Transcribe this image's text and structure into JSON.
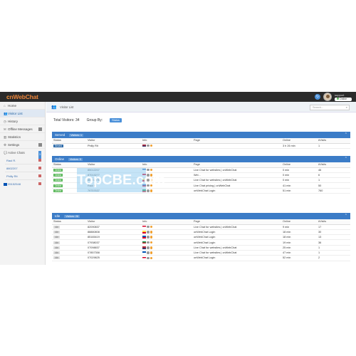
{
  "app": {
    "logo_prefix": "c",
    "logo_main": "nWebChat"
  },
  "topbar": {
    "user_name": "support",
    "status": "Online"
  },
  "sidebar": {
    "items": [
      {
        "icon": "home-icon",
        "glyph": "⌂",
        "label": "Home",
        "active": false
      },
      {
        "icon": "visitors-icon",
        "glyph": "👥",
        "label": "Visitor List",
        "active": true
      },
      {
        "icon": "clock-icon",
        "glyph": "◷",
        "label": "History",
        "active": false
      },
      {
        "icon": "mail-icon",
        "glyph": "✉",
        "label": "Offline Messages",
        "active": false
      },
      {
        "icon": "chart-icon",
        "glyph": "▥",
        "label": "Statistics",
        "active": false
      },
      {
        "icon": "gear-icon",
        "glyph": "⚙",
        "label": "Settings",
        "active": false
      }
    ],
    "active_chats_label": "Active Chats",
    "active_chats_count": "3",
    "chats": [
      "Raul R.",
      "8802207",
      "Philly Rit"
    ],
    "flag_row_label": "05152548"
  },
  "pagebar": {
    "crumb": "Visitor List",
    "search_placeholder": "Search..."
  },
  "summary": {
    "total_label": "Total Visitors: 34",
    "group_label": "Group By:",
    "group_value": "Status"
  },
  "columns": [
    "Status",
    "Visitor",
    "Info",
    "Page",
    "Online",
    "#Visits"
  ],
  "panels": [
    {
      "title": "Served",
      "sub": "Visitors: 1",
      "rows": [
        {
          "status": "Served",
          "status_class": "served",
          "visitor": "Philly Rit",
          "flags": [
            "#b22234",
            "#fff"
          ],
          "page": "",
          "online": "3 h 26 min",
          "visits": "1"
        }
      ]
    },
    {
      "title": "Online",
      "sub": "Visitors: 5",
      "rows": [
        {
          "status": "Online",
          "status_class": "online",
          "visitor": "85012207",
          "page": "Live Chat for websites | onWebChat",
          "online": "0 min",
          "visits": "46"
        },
        {
          "status": "Online",
          "status_class": "online",
          "visitor": "87013277",
          "page": "Wel...",
          "online": "0 min",
          "visits": "6"
        },
        {
          "status": "Online",
          "status_class": "online",
          "visitor": "85122076",
          "page": "Live Chat for websites | onWebChat",
          "online": "0 min",
          "visits": "1"
        },
        {
          "status": "Online",
          "status_class": "online",
          "visitor": "Raul R.",
          "page": "Live Chat pricing | onWebChat",
          "online": "41 min",
          "visits": "50"
        },
        {
          "status": "Online",
          "status_class": "online",
          "visitor": "79757637",
          "page": "onWebChat Login",
          "online": "51 min",
          "visits": "760"
        }
      ]
    },
    {
      "title": "Idle",
      "sub": "Visitors: 28",
      "rows": [
        {
          "status": "Idle",
          "status_class": "idle",
          "visitor": "82090837",
          "page": "Live Chat for websites | onWebChat",
          "online": "9 min",
          "visits": "17"
        },
        {
          "status": "Idle",
          "status_class": "idle",
          "visitor": "88880808",
          "page": "onWebChat Login",
          "online": "18 min",
          "visits": "30"
        },
        {
          "status": "Idle",
          "status_class": "idle",
          "visitor": "85165419",
          "page": "onWebChat Login",
          "online": "18 min",
          "visits": "13"
        },
        {
          "status": "Idle",
          "status_class": "idle",
          "visitor": "07938037",
          "page": "onWebChat Login",
          "online": "19 min",
          "visits": "36"
        },
        {
          "status": "Idle",
          "status_class": "idle",
          "visitor": "07098837",
          "page": "Live Chat for websites | onWebChat",
          "online": "25 min",
          "visits": "1"
        },
        {
          "status": "Idle",
          "status_class": "idle",
          "visitor": "07857358",
          "page": "Live Chat for websites | onWebChat",
          "online": "47 min",
          "visits": "1"
        },
        {
          "status": "Idle",
          "status_class": "idle",
          "visitor": "07029825",
          "page": "onWebChat Login",
          "online": "52 min",
          "visits": "2"
        }
      ]
    }
  ],
  "watermark": "TopCBE.com"
}
